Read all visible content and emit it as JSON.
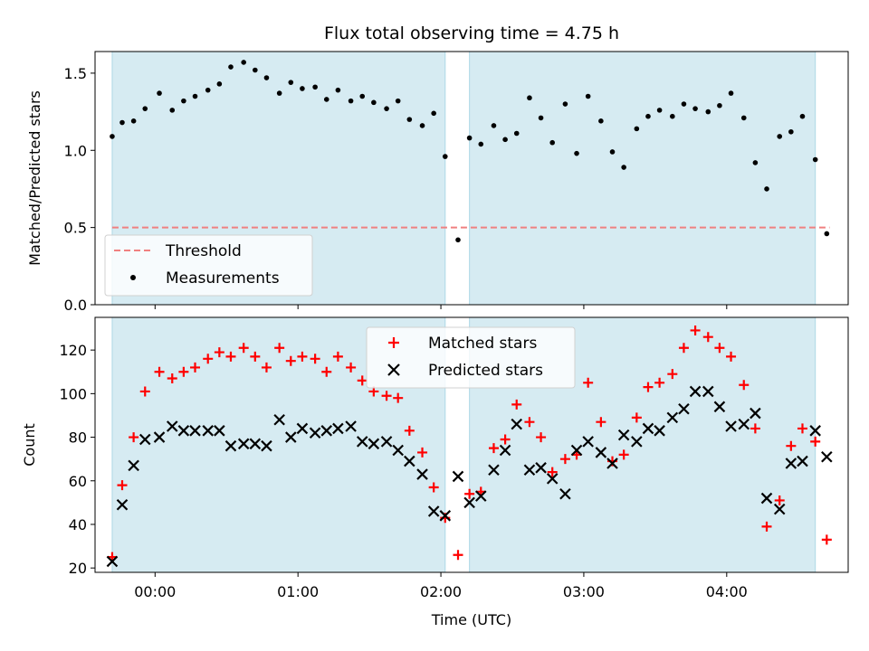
{
  "figure_title": "Flux total observing time = 4.75 h",
  "colors": {
    "span": "#add8e6",
    "threshold": "#f08080",
    "matched": "#ff0000",
    "predicted": "#000000",
    "measurement": "#000000"
  },
  "chart_data": [
    {
      "type": "scatter",
      "title": "Flux total observing time = 4.75 h",
      "xlabel": "",
      "ylabel": "Matched/Predicted stars",
      "xlim": [
        -0.42,
        4.85
      ],
      "ylim": [
        0.0,
        1.64
      ],
      "x_ticks": [
        0,
        1,
        2,
        3,
        4
      ],
      "x_tick_labels": [
        "",
        "",
        "",
        "",
        ""
      ],
      "y_ticks": [
        0.0,
        0.5,
        1.0,
        1.5
      ],
      "y_tick_labels": [
        "0.0",
        "0.5",
        "1.0",
        "1.5"
      ],
      "shaded_spans": [
        [
          -0.3,
          2.03
        ],
        [
          2.2,
          4.62
        ]
      ],
      "threshold": {
        "y": 0.5,
        "x_range": [
          -0.3,
          4.72
        ],
        "label": "Threshold"
      },
      "legend": {
        "position": "lower left",
        "entries": [
          "Threshold",
          "Measurements"
        ]
      },
      "series": [
        {
          "name": "Measurements",
          "x": [
            -0.3,
            -0.23,
            -0.15,
            -0.07,
            0.03,
            0.12,
            0.2,
            0.28,
            0.37,
            0.45,
            0.53,
            0.62,
            0.7,
            0.78,
            0.87,
            0.95,
            1.03,
            1.12,
            1.2,
            1.28,
            1.37,
            1.45,
            1.53,
            1.62,
            1.7,
            1.78,
            1.87,
            1.95,
            2.03,
            2.12,
            2.2,
            2.28,
            2.37,
            2.45,
            2.53,
            2.62,
            2.7,
            2.78,
            2.87,
            2.95,
            3.03,
            3.12,
            3.2,
            3.28,
            3.37,
            3.45,
            3.53,
            3.62,
            3.7,
            3.78,
            3.87,
            3.95,
            4.03,
            4.12,
            4.2,
            4.28,
            4.37,
            4.45,
            4.53,
            4.62,
            4.7
          ],
          "y": [
            1.09,
            1.18,
            1.19,
            1.27,
            1.37,
            1.26,
            1.32,
            1.35,
            1.39,
            1.43,
            1.54,
            1.57,
            1.52,
            1.47,
            1.37,
            1.44,
            1.4,
            1.41,
            1.33,
            1.39,
            1.32,
            1.35,
            1.31,
            1.27,
            1.32,
            1.2,
            1.16,
            1.24,
            0.96,
            0.42,
            1.08,
            1.04,
            1.16,
            1.07,
            1.11,
            1.34,
            1.21,
            1.05,
            1.3,
            0.98,
            1.35,
            1.19,
            0.99,
            0.89,
            1.14,
            1.22,
            1.26,
            1.22,
            1.3,
            1.27,
            1.25,
            1.29,
            1.37,
            1.21,
            0.92,
            0.75,
            1.09,
            1.12,
            1.22,
            0.94,
            0.46
          ]
        }
      ]
    },
    {
      "type": "scatter",
      "title": "",
      "xlabel": "Time (UTC)",
      "ylabel": "Count",
      "xlim": [
        -0.42,
        4.85
      ],
      "ylim": [
        18,
        135
      ],
      "x_ticks": [
        0,
        1,
        2,
        3,
        4
      ],
      "x_tick_labels": [
        "00:00",
        "01:00",
        "02:00",
        "03:00",
        "04:00"
      ],
      "y_ticks": [
        20,
        40,
        60,
        80,
        100,
        120
      ],
      "y_tick_labels": [
        "20",
        "40",
        "60",
        "80",
        "100",
        "120"
      ],
      "shaded_spans": [
        [
          -0.3,
          2.03
        ],
        [
          2.2,
          4.62
        ]
      ],
      "legend": {
        "position": "upper center",
        "entries": [
          "Matched stars",
          "Predicted stars"
        ]
      },
      "series": [
        {
          "name": "Matched stars",
          "marker": "+",
          "x": [
            -0.3,
            -0.23,
            -0.15,
            -0.07,
            0.03,
            0.12,
            0.2,
            0.28,
            0.37,
            0.45,
            0.53,
            0.62,
            0.7,
            0.78,
            0.87,
            0.95,
            1.03,
            1.12,
            1.2,
            1.28,
            1.37,
            1.45,
            1.53,
            1.62,
            1.7,
            1.78,
            1.87,
            1.95,
            2.03,
            2.12,
            2.2,
            2.28,
            2.37,
            2.45,
            2.53,
            2.62,
            2.7,
            2.78,
            2.87,
            2.95,
            3.03,
            3.12,
            3.2,
            3.28,
            3.37,
            3.45,
            3.53,
            3.62,
            3.7,
            3.78,
            3.87,
            3.95,
            4.03,
            4.12,
            4.2,
            4.28,
            4.37,
            4.45,
            4.53,
            4.62,
            4.7
          ],
          "y": [
            25,
            58,
            80,
            101,
            110,
            107,
            110,
            112,
            116,
            119,
            117,
            121,
            117,
            112,
            121,
            115,
            117,
            116,
            110,
            117,
            112,
            106,
            101,
            99,
            98,
            83,
            73,
            57,
            43,
            26,
            54,
            55,
            75,
            79,
            95,
            87,
            80,
            64,
            70,
            72,
            105,
            87,
            69,
            72,
            89,
            103,
            105,
            109,
            121,
            129,
            126,
            121,
            117,
            104,
            84,
            39,
            51,
            76,
            84,
            78,
            33
          ]
        },
        {
          "name": "Predicted stars",
          "marker": "x",
          "x": [
            -0.3,
            -0.23,
            -0.15,
            -0.07,
            0.03,
            0.12,
            0.2,
            0.28,
            0.37,
            0.45,
            0.53,
            0.62,
            0.7,
            0.78,
            0.87,
            0.95,
            1.03,
            1.12,
            1.2,
            1.28,
            1.37,
            1.45,
            1.53,
            1.62,
            1.7,
            1.78,
            1.87,
            1.95,
            2.03,
            2.12,
            2.2,
            2.28,
            2.37,
            2.45,
            2.53,
            2.62,
            2.7,
            2.78,
            2.87,
            2.95,
            3.03,
            3.12,
            3.2,
            3.28,
            3.37,
            3.45,
            3.53,
            3.62,
            3.7,
            3.78,
            3.87,
            3.95,
            4.03,
            4.12,
            4.2,
            4.28,
            4.37,
            4.45,
            4.53,
            4.62,
            4.7
          ],
          "y": [
            23,
            49,
            67,
            79,
            80,
            85,
            83,
            83,
            83,
            83,
            76,
            77,
            77,
            76,
            88,
            80,
            84,
            82,
            83,
            84,
            85,
            78,
            77,
            78,
            74,
            69,
            63,
            46,
            44,
            62,
            50,
            53,
            65,
            74,
            86,
            65,
            66,
            61,
            54,
            74,
            78,
            73,
            68,
            81,
            78,
            84,
            83,
            89,
            93,
            101,
            101,
            94,
            85,
            86,
            91,
            52,
            47,
            68,
            69,
            83,
            71
          ]
        }
      ]
    }
  ]
}
